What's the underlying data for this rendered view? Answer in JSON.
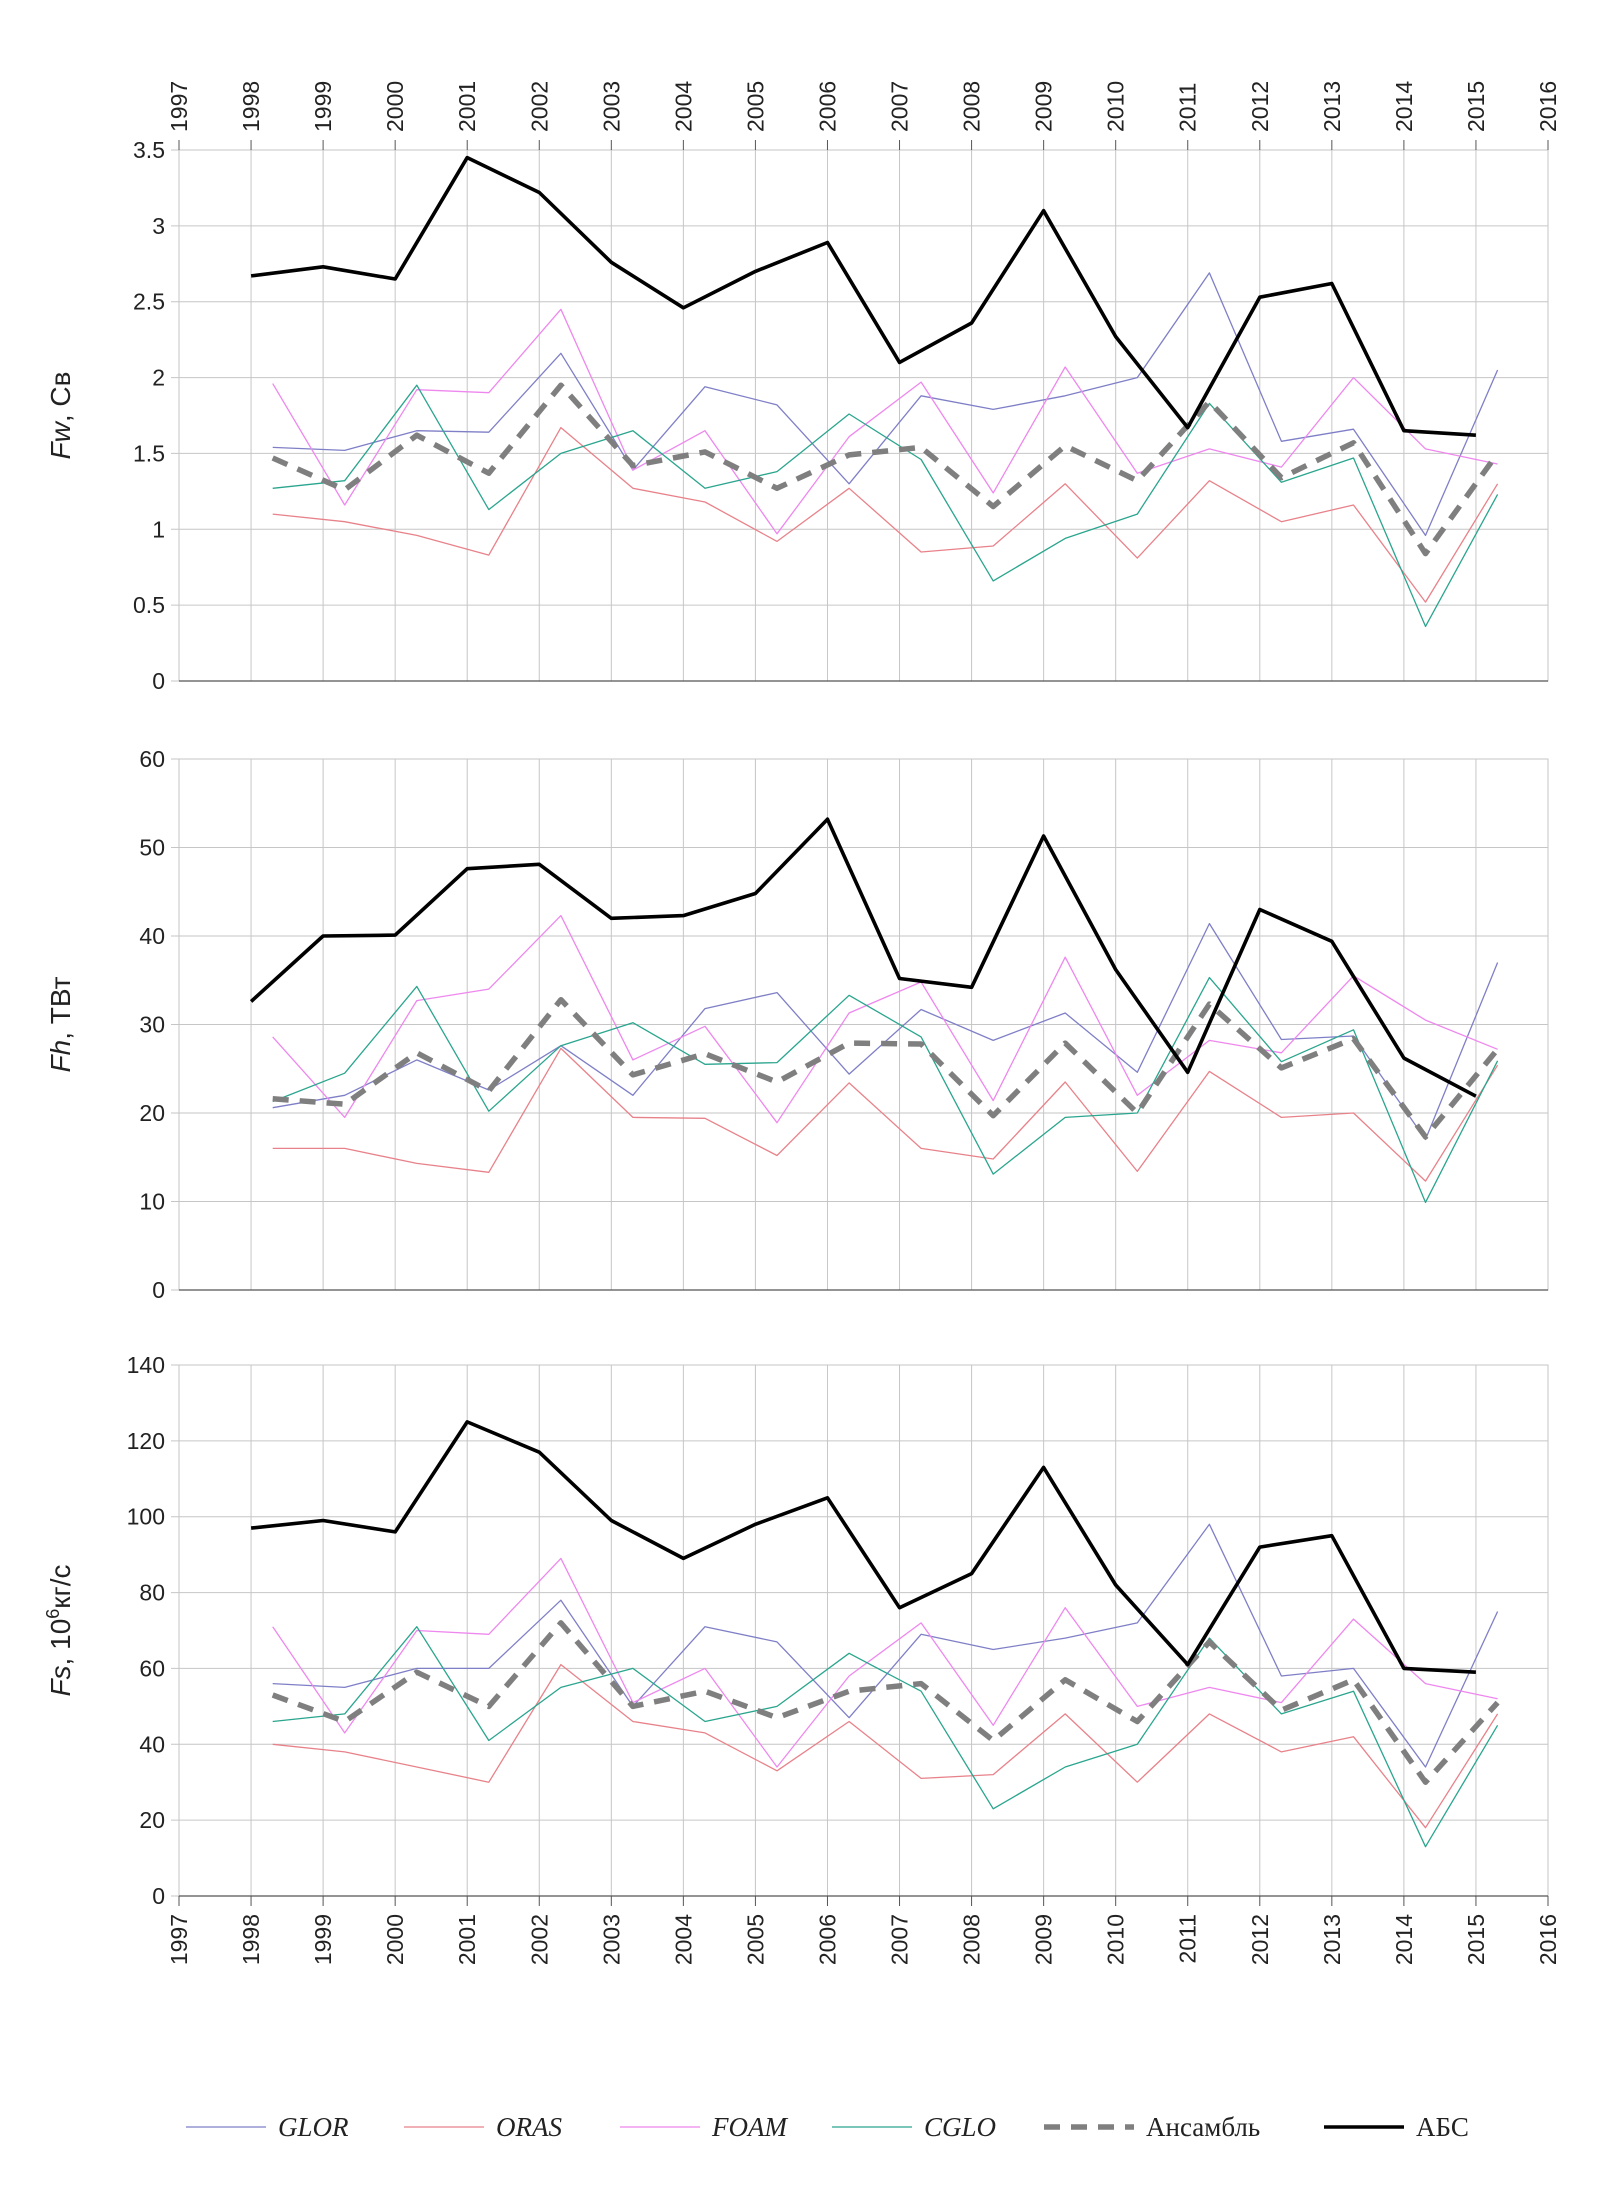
{
  "chart_data": [
    {
      "type": "line",
      "ylabel_italic": "Fw",
      "ylabel_rest": ", Св",
      "ylim": [
        0,
        3.5
      ],
      "yticks": [
        "0",
        "0.5",
        "1",
        "1.5",
        "2",
        "2.5",
        "3",
        "3.5"
      ],
      "xlim": [
        1997,
        2016
      ],
      "xticks": [
        "1997",
        "1998",
        "1999",
        "2000",
        "2001",
        "2002",
        "2003",
        "2004",
        "2005",
        "2006",
        "2007",
        "2008",
        "2009",
        "2010",
        "2011",
        "2012",
        "2013",
        "2014",
        "2015",
        "2016"
      ],
      "top_axis_labels": true,
      "series": [
        {
          "key": "glor",
          "x": [
            1998.3,
            1999.3,
            2000.3,
            2001.3,
            2002.3,
            2003.3,
            2004.3,
            2005.3,
            2006.3,
            2007.3,
            2008.3,
            2009.3,
            2010.3,
            2011.3,
            2012.3,
            2013.3,
            2014.3,
            2015.3
          ],
          "values": [
            1.54,
            1.52,
            1.65,
            1.64,
            2.16,
            1.39,
            1.94,
            1.82,
            1.3,
            1.88,
            1.79,
            1.88,
            2.0,
            2.69,
            1.58,
            1.66,
            0.96,
            2.05
          ]
        },
        {
          "key": "oras",
          "x": [
            1998.3,
            1999.3,
            2000.3,
            2001.3,
            2002.3,
            2003.3,
            2004.3,
            2005.3,
            2006.3,
            2007.3,
            2008.3,
            2009.3,
            2010.3,
            2011.3,
            2012.3,
            2013.3,
            2014.3,
            2015.3
          ],
          "values": [
            1.1,
            1.05,
            0.96,
            0.83,
            1.67,
            1.27,
            1.18,
            0.92,
            1.27,
            0.85,
            0.89,
            1.3,
            0.81,
            1.32,
            1.05,
            1.16,
            0.52,
            1.3
          ]
        },
        {
          "key": "foam",
          "x": [
            1998.3,
            1999.3,
            2000.3,
            2001.3,
            2002.3,
            2003.3,
            2004.3,
            2005.3,
            2006.3,
            2007.3,
            2008.3,
            2009.3,
            2010.3,
            2011.3,
            2012.3,
            2013.3,
            2014.3,
            2015.3
          ],
          "values": [
            1.96,
            1.16,
            1.92,
            1.9,
            2.45,
            1.39,
            1.65,
            0.97,
            1.61,
            1.97,
            1.24,
            2.07,
            1.37,
            1.53,
            1.41,
            2.0,
            1.53,
            1.43
          ]
        },
        {
          "key": "cglo",
          "x": [
            1998.3,
            1999.3,
            2000.3,
            2001.3,
            2002.3,
            2003.3,
            2004.3,
            2005.3,
            2006.3,
            2007.3,
            2008.3,
            2009.3,
            2010.3,
            2011.3,
            2012.3,
            2013.3,
            2014.3,
            2015.3
          ],
          "values": [
            1.27,
            1.32,
            1.95,
            1.13,
            1.5,
            1.65,
            1.27,
            1.38,
            1.76,
            1.46,
            0.66,
            0.94,
            1.1,
            1.83,
            1.31,
            1.47,
            0.36,
            1.23
          ]
        },
        {
          "key": "ensemble",
          "x": [
            1998.3,
            1999.3,
            2000.3,
            2001.3,
            2002.3,
            2003.3,
            2004.3,
            2005.3,
            2006.3,
            2007.3,
            2008.3,
            2009.3,
            2010.3,
            2011.3,
            2012.3,
            2013.3,
            2014.3,
            2015.3
          ],
          "values": [
            1.47,
            1.26,
            1.62,
            1.37,
            1.95,
            1.42,
            1.51,
            1.27,
            1.49,
            1.54,
            1.15,
            1.55,
            1.32,
            1.84,
            1.34,
            1.57,
            0.84,
            1.5
          ]
        },
        {
          "key": "abs",
          "x": [
            1998,
            1999,
            2000,
            2001,
            2002,
            2003,
            2004,
            2005,
            2006,
            2007,
            2008,
            2009,
            2010,
            2011,
            2012,
            2013,
            2014,
            2015
          ],
          "values": [
            2.67,
            2.73,
            2.65,
            3.45,
            3.22,
            2.76,
            2.46,
            2.7,
            2.89,
            2.1,
            2.36,
            3.1,
            2.27,
            1.67,
            2.53,
            2.62,
            1.65,
            1.62
          ]
        }
      ]
    },
    {
      "type": "line",
      "ylabel_italic": "Fh",
      "ylabel_rest": ", ТВт",
      "ylim": [
        0,
        60
      ],
      "yticks": [
        "0",
        "10",
        "20",
        "30",
        "40",
        "50",
        "60"
      ],
      "xlim": [
        1997,
        2016
      ],
      "top_axis_labels": false,
      "series": [
        {
          "key": "glor",
          "x": [
            1998.3,
            1999.3,
            2000.3,
            2001.3,
            2002.3,
            2003.3,
            2004.3,
            2005.3,
            2006.3,
            2007.3,
            2008.3,
            2009.3,
            2010.3,
            2011.3,
            2012.3,
            2013.3,
            2014.3,
            2015.3
          ],
          "values": [
            20.6,
            22.0,
            26.0,
            22.6,
            27.6,
            22.0,
            31.8,
            33.6,
            24.4,
            31.7,
            28.2,
            31.3,
            24.6,
            41.4,
            28.3,
            28.7,
            17.0,
            37.0
          ]
        },
        {
          "key": "oras",
          "x": [
            1998.3,
            1999.3,
            2000.3,
            2001.3,
            2002.3,
            2003.3,
            2004.3,
            2005.3,
            2006.3,
            2007.3,
            2008.3,
            2009.3,
            2010.3,
            2011.3,
            2012.3,
            2013.3,
            2014.3,
            2015.3
          ],
          "values": [
            16.0,
            16.0,
            14.3,
            13.3,
            27.3,
            19.5,
            19.4,
            15.2,
            23.4,
            16.0,
            14.8,
            23.5,
            13.4,
            24.7,
            19.5,
            20.0,
            12.3,
            25.4
          ]
        },
        {
          "key": "foam",
          "x": [
            1998.3,
            1999.3,
            2000.3,
            2001.3,
            2002.3,
            2003.3,
            2004.3,
            2005.3,
            2006.3,
            2007.3,
            2008.3,
            2009.3,
            2010.3,
            2011.3,
            2012.3,
            2013.3,
            2014.3,
            2015.3
          ],
          "values": [
            28.6,
            19.5,
            32.7,
            34.0,
            42.3,
            26.0,
            29.8,
            18.9,
            31.3,
            34.8,
            21.4,
            37.6,
            22.0,
            28.2,
            26.8,
            35.5,
            30.5,
            27.2
          ]
        },
        {
          "key": "cglo",
          "x": [
            1998.3,
            1999.3,
            2000.3,
            2001.3,
            2002.3,
            2003.3,
            2004.3,
            2005.3,
            2006.3,
            2007.3,
            2008.3,
            2009.3,
            2010.3,
            2011.3,
            2012.3,
            2013.3,
            2014.3,
            2015.3
          ],
          "values": [
            21.3,
            24.5,
            34.3,
            20.2,
            27.6,
            30.2,
            25.5,
            25.7,
            33.3,
            28.6,
            13.1,
            19.5,
            20.0,
            35.3,
            25.8,
            29.4,
            9.9,
            25.9
          ]
        },
        {
          "key": "ensemble",
          "x": [
            1998.3,
            1999.3,
            2000.3,
            2001.3,
            2002.3,
            2003.3,
            2004.3,
            2005.3,
            2006.3,
            2007.3,
            2008.3,
            2009.3,
            2010.3,
            2011.3,
            2012.3,
            2013.3,
            2014.3,
            2015.3
          ],
          "values": [
            21.6,
            21.0,
            26.8,
            22.5,
            32.8,
            24.3,
            26.7,
            23.5,
            27.9,
            27.8,
            19.7,
            27.9,
            20.0,
            32.3,
            25.1,
            28.4,
            17.3,
            27.2
          ]
        },
        {
          "key": "abs",
          "x": [
            1998,
            1999,
            2000,
            2001,
            2002,
            2003,
            2004,
            2005,
            2006,
            2007,
            2008,
            2009,
            2010,
            2011,
            2012,
            2013,
            2014,
            2015
          ],
          "values": [
            32.6,
            40.0,
            40.1,
            47.6,
            48.1,
            42.0,
            42.3,
            44.8,
            53.2,
            35.2,
            34.2,
            51.3,
            36.2,
            24.6,
            43.0,
            39.4,
            26.2,
            21.9
          ]
        }
      ]
    },
    {
      "type": "line",
      "ylabel_italic": "Fs",
      "ylabel_rest": ", 10",
      "ylabel_sup": "6",
      "ylabel_unit": "кг/с",
      "ylim": [
        0,
        140
      ],
      "yticks": [
        "0",
        "20",
        "40",
        "60",
        "80",
        "100",
        "120",
        "140"
      ],
      "xlim": [
        1997,
        2016
      ],
      "xticks": [
        "1997",
        "1998",
        "1999",
        "2000",
        "2001",
        "2002",
        "2003",
        "2004",
        "2005",
        "2006",
        "2007",
        "2008",
        "2009",
        "2010",
        "2011",
        "2012",
        "2013",
        "2014",
        "2015",
        "2016"
      ],
      "bottom_axis_labels": true,
      "series": [
        {
          "key": "glor",
          "x": [
            1998.3,
            1999.3,
            2000.3,
            2001.3,
            2002.3,
            2003.3,
            2004.3,
            2005.3,
            2006.3,
            2007.3,
            2008.3,
            2009.3,
            2010.3,
            2011.3,
            2012.3,
            2013.3,
            2014.3,
            2015.3
          ],
          "values": [
            56,
            55,
            60,
            60,
            78,
            50,
            71,
            67,
            47,
            69,
            65,
            68,
            72,
            98,
            58,
            60,
            34,
            75
          ]
        },
        {
          "key": "oras",
          "x": [
            1998.3,
            1999.3,
            2000.3,
            2001.3,
            2002.3,
            2003.3,
            2004.3,
            2005.3,
            2006.3,
            2007.3,
            2008.3,
            2009.3,
            2010.3,
            2011.3,
            2012.3,
            2013.3,
            2014.3,
            2015.3
          ],
          "values": [
            40,
            38,
            34,
            30,
            61,
            46,
            43,
            33,
            46,
            31,
            32,
            48,
            30,
            48,
            38,
            42,
            18,
            48
          ]
        },
        {
          "key": "foam",
          "x": [
            1998.3,
            1999.3,
            2000.3,
            2001.3,
            2002.3,
            2003.3,
            2004.3,
            2005.3,
            2006.3,
            2007.3,
            2008.3,
            2009.3,
            2010.3,
            2011.3,
            2012.3,
            2013.3,
            2014.3,
            2015.3
          ],
          "values": [
            71,
            43,
            70,
            69,
            89,
            51,
            60,
            34,
            58,
            72,
            45,
            76,
            50,
            55,
            51,
            73,
            56,
            52
          ]
        },
        {
          "key": "cglo",
          "x": [
            1998.3,
            1999.3,
            2000.3,
            2001.3,
            2002.3,
            2003.3,
            2004.3,
            2005.3,
            2006.3,
            2007.3,
            2008.3,
            2009.3,
            2010.3,
            2011.3,
            2012.3,
            2013.3,
            2014.3,
            2015.3
          ],
          "values": [
            46,
            48,
            71,
            41,
            55,
            60,
            46,
            50,
            64,
            54,
            23,
            34,
            40,
            68,
            48,
            54,
            13,
            45
          ]
        },
        {
          "key": "ensemble",
          "x": [
            1998.3,
            1999.3,
            2000.3,
            2001.3,
            2002.3,
            2003.3,
            2004.3,
            2005.3,
            2006.3,
            2007.3,
            2008.3,
            2009.3,
            2010.3,
            2011.3,
            2012.3,
            2013.3,
            2014.3,
            2015.3
          ],
          "values": [
            53,
            46,
            59,
            50,
            72,
            50,
            54,
            47,
            54,
            56,
            41,
            57,
            46,
            67,
            49,
            57,
            30,
            51
          ]
        },
        {
          "key": "abs",
          "x": [
            1998,
            1999,
            2000,
            2001,
            2002,
            2003,
            2004,
            2005,
            2006,
            2007,
            2008,
            2009,
            2010,
            2011,
            2012,
            2013,
            2014,
            2015
          ],
          "values": [
            97,
            99,
            96,
            125,
            117,
            99,
            89,
            98,
            105,
            76,
            85,
            113,
            82,
            61,
            92,
            95,
            60,
            59
          ]
        }
      ]
    }
  ],
  "legend": [
    {
      "key": "glor",
      "label": "GLOR",
      "italic": true
    },
    {
      "key": "oras",
      "label": "ORAS",
      "italic": true
    },
    {
      "key": "foam",
      "label": "FOAM",
      "italic": true
    },
    {
      "key": "cglo",
      "label": "CGLO",
      "italic": true
    },
    {
      "key": "ensemble",
      "label": "Ансамбль",
      "italic": false
    },
    {
      "key": "abs",
      "label": "АБС",
      "italic": false
    }
  ],
  "colors": {
    "glor": "#7f7fc7",
    "oras": "#e8828a",
    "foam": "#ee88ee",
    "cglo": "#2aa58e",
    "ensemble": "#7f7f7f",
    "abs": "#000000",
    "grid": "#c6c6c6",
    "axis": "#555555"
  }
}
